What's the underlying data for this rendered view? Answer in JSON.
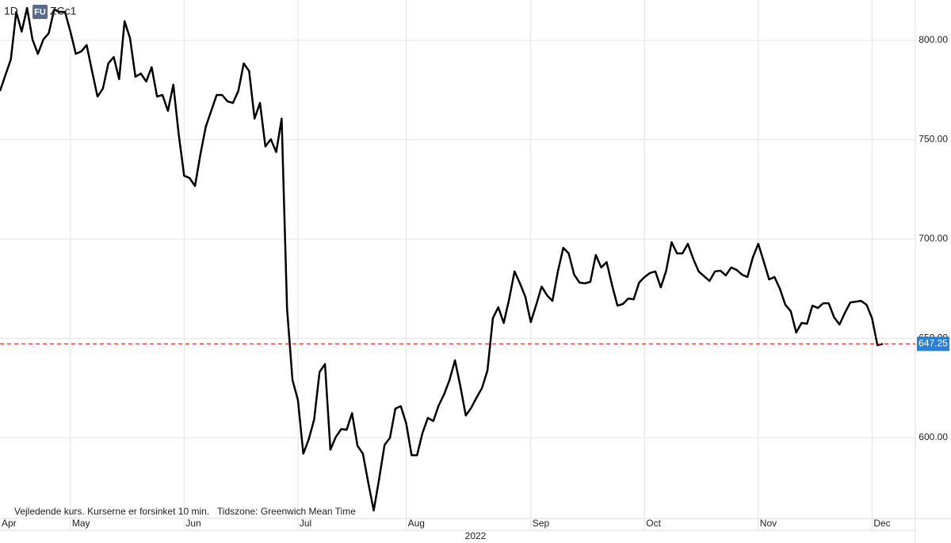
{
  "chart_data": {
    "type": "line",
    "interval": "1D",
    "badge": "FU",
    "symbol": "ZCc1",
    "note": "Vejledende kurs. Kurserne er forsinket 10 min.   Tidszone: Greenwich Mean Time",
    "x_year_label": "2022",
    "categories": [
      "Apr",
      null,
      null,
      null,
      null,
      null,
      null,
      null,
      null,
      null,
      null,
      null,
      null,
      "May",
      null,
      null,
      null,
      null,
      null,
      null,
      null,
      null,
      null,
      null,
      null,
      null,
      null,
      null,
      null,
      null,
      null,
      null,
      null,
      null,
      "Jun",
      null,
      null,
      null,
      null,
      null,
      null,
      null,
      null,
      null,
      null,
      null,
      null,
      null,
      null,
      null,
      null,
      null,
      null,
      null,
      null,
      "Jul",
      null,
      null,
      null,
      null,
      null,
      null,
      null,
      null,
      null,
      null,
      null,
      null,
      null,
      null,
      null,
      null,
      null,
      null,
      null,
      "Aug",
      null,
      null,
      null,
      null,
      null,
      null,
      null,
      null,
      null,
      null,
      null,
      null,
      null,
      null,
      null,
      null,
      null,
      null,
      null,
      null,
      null,
      null,
      "Sep",
      null,
      null,
      null,
      null,
      null,
      null,
      null,
      null,
      null,
      null,
      null,
      null,
      null,
      null,
      null,
      null,
      null,
      null,
      null,
      null,
      "Oct",
      null,
      null,
      null,
      null,
      null,
      null,
      null,
      null,
      null,
      null,
      null,
      null,
      null,
      null,
      null,
      null,
      null,
      null,
      null,
      null,
      "Nov",
      null,
      null,
      null,
      null,
      null,
      null,
      null,
      null,
      null,
      null,
      null,
      null,
      null,
      null,
      null,
      null,
      null,
      null,
      null,
      null,
      "Dec",
      null,
      null
    ],
    "series": [
      {
        "name": "ZCc1",
        "color": "#000000",
        "values": [
          774.5,
          782.5,
          790.4,
          814.3,
          804.4,
          816.3,
          800.4,
          793.2,
          800.4,
          803.6,
          815.5,
          814.3,
          814.3,
          804.4,
          793.2,
          794.4,
          797.6,
          784.5,
          771.7,
          775.7,
          788.4,
          791.6,
          780.5,
          809.6,
          801.2,
          781.7,
          783.3,
          779.3,
          786.5,
          771.7,
          772.5,
          764.5,
          777.7,
          752.6,
          731.9,
          730.7,
          726.7,
          742.6,
          756.6,
          764.5,
          772.5,
          772.5,
          769.3,
          768.5,
          774.5,
          788.4,
          784.5,
          760.6,
          768.5,
          746.6,
          750.2,
          743.8,
          760.6,
          664.9,
          629.1,
          619.1,
          592.0,
          599.2,
          609.2,
          633.1,
          637.1,
          594.0,
          600.4,
          604.4,
          604.0,
          612.4,
          596.0,
          592.0,
          577.3,
          563.4,
          579.3,
          596.4,
          600.0,
          614.7,
          615.9,
          607.2,
          591.2,
          591.2,
          602.4,
          610.0,
          608.4,
          616.3,
          621.9,
          629.1,
          639.0,
          625.9,
          611.2,
          615.1,
          620.3,
          625.1,
          633.9,
          660.2,
          665.7,
          657.8,
          669.7,
          683.7,
          677.7,
          670.9,
          658.2,
          666.9,
          676.1,
          671.7,
          668.9,
          683.7,
          695.6,
          692.8,
          682.1,
          678.1,
          677.7,
          678.5,
          692.0,
          685.7,
          688.4,
          676.9,
          666.5,
          667.3,
          670.1,
          669.7,
          678.1,
          680.9,
          682.9,
          683.7,
          675.7,
          684.1,
          698.4,
          692.8,
          692.8,
          697.6,
          690.0,
          683.7,
          681.3,
          678.9,
          683.7,
          684.1,
          681.7,
          685.7,
          684.5,
          682.1,
          680.9,
          690.8,
          697.6,
          688.8,
          679.7,
          680.9,
          674.9,
          666.9,
          663.7,
          653.0,
          657.8,
          657.4,
          666.5,
          665.3,
          667.7,
          667.7,
          660.6,
          657.0,
          662.9,
          668.1,
          668.5,
          668.9,
          666.9,
          660.2,
          646.6,
          647.25
        ]
      }
    ],
    "ylim": [
      559.4,
      820.3
    ],
    "yticks": [
      {
        "value": 600,
        "label": "600.00"
      },
      {
        "value": 650,
        "label": "650.00"
      },
      {
        "value": 700,
        "label": "700.00"
      },
      {
        "value": 750,
        "label": "750.00"
      },
      {
        "value": 800,
        "label": "800.00"
      }
    ],
    "grid": true,
    "last_line_color": "#d0342c",
    "last_box_color": "#2d7fd3"
  }
}
